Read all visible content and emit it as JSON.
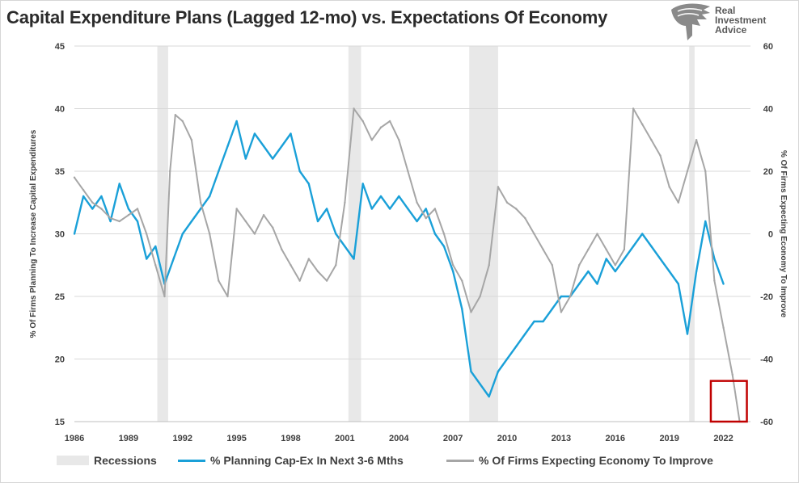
{
  "header": {
    "title": "Capital Expenditure Plans (Lagged 12-mo) vs. Expectations Of Economy"
  },
  "logo": {
    "line1": "Real",
    "line2": "Investment",
    "line3": "Advice",
    "icon": "eagle-icon"
  },
  "colors": {
    "capex": "#1aa0d8",
    "economy": "#a6a6a6",
    "recession": "#e8e8e8",
    "highlight": "#c00000"
  },
  "chart_data": {
    "type": "line",
    "title": "Capital Expenditure Plans (Lagged 12-mo) vs. Expectations Of Economy",
    "xlabel": "",
    "xlim": [
      1986,
      2023.5
    ],
    "x_ticks": [
      1986,
      1989,
      1992,
      1995,
      1998,
      2001,
      2004,
      2007,
      2010,
      2013,
      2016,
      2019,
      2022
    ],
    "ylabel_left": "% Of Firms Planning To Increase Capital Expenditures",
    "ylim_left": [
      15,
      45
    ],
    "yticks_left": [
      15,
      20,
      25,
      30,
      35,
      40,
      45
    ],
    "ylabel_right": "% Of Firms Expecting Economy To Improve",
    "ylim_right": [
      -60,
      60
    ],
    "yticks_right": [
      -60,
      -40,
      -20,
      0,
      20,
      40,
      60
    ],
    "grid": true,
    "legend_position": "bottom",
    "recessions": [
      [
        1990.6,
        1991.2
      ],
      [
        2001.2,
        2001.9
      ],
      [
        2007.9,
        2009.5
      ],
      [
        2020.1,
        2020.4
      ]
    ],
    "highlight_region": {
      "x": [
        2021.3,
        2023.3
      ],
      "y_right": [
        -60,
        -47
      ]
    },
    "series": [
      {
        "name": "Recessions",
        "type": "band"
      },
      {
        "name": "% Planning Cap-Ex In Next 3-6 Mths",
        "axis": "left",
        "x": [
          1986.0,
          1986.5,
          1987.0,
          1987.5,
          1988.0,
          1988.5,
          1989.0,
          1989.5,
          1990.0,
          1990.5,
          1991.0,
          1991.5,
          1992.0,
          1992.5,
          1993.0,
          1993.5,
          1994.0,
          1994.5,
          1995.0,
          1995.5,
          1996.0,
          1996.5,
          1997.0,
          1997.5,
          1998.0,
          1998.5,
          1999.0,
          1999.5,
          2000.0,
          2000.5,
          2001.0,
          2001.5,
          2002.0,
          2002.5,
          2003.0,
          2003.5,
          2004.0,
          2004.5,
          2005.0,
          2005.5,
          2006.0,
          2006.5,
          2007.0,
          2007.5,
          2008.0,
          2008.5,
          2009.0,
          2009.5,
          2010.0,
          2010.5,
          2011.0,
          2011.5,
          2012.0,
          2012.5,
          2013.0,
          2013.5,
          2014.0,
          2014.5,
          2015.0,
          2015.5,
          2016.0,
          2016.5,
          2017.0,
          2017.5,
          2018.0,
          2018.5,
          2019.0,
          2019.5,
          2020.0,
          2020.5,
          2021.0,
          2021.5,
          2022.0
        ],
        "values": [
          30,
          33,
          32,
          33,
          31,
          34,
          32,
          31,
          28,
          29,
          26,
          28,
          30,
          31,
          32,
          33,
          35,
          37,
          39,
          36,
          38,
          37,
          36,
          37,
          38,
          35,
          34,
          31,
          32,
          30,
          29,
          28,
          34,
          32,
          33,
          32,
          33,
          32,
          31,
          32,
          30,
          29,
          27,
          24,
          19,
          18,
          17,
          19,
          20,
          21,
          22,
          23,
          23,
          24,
          25,
          25,
          26,
          27,
          26,
          28,
          27,
          28,
          29,
          30,
          29,
          28,
          27,
          26,
          22,
          27,
          31,
          28,
          26
        ]
      },
      {
        "name": "% Of Firms Expecting Economy To Improve",
        "axis": "right",
        "x": [
          1986.0,
          1986.5,
          1987.0,
          1987.5,
          1988.0,
          1988.5,
          1989.0,
          1989.5,
          1990.0,
          1990.5,
          1991.0,
          1991.3,
          1991.6,
          1992.0,
          1992.5,
          1993.0,
          1993.5,
          1994.0,
          1994.5,
          1995.0,
          1995.5,
          1996.0,
          1996.5,
          1997.0,
          1997.5,
          1998.0,
          1998.5,
          1999.0,
          1999.5,
          2000.0,
          2000.5,
          2001.0,
          2001.5,
          2002.0,
          2002.5,
          2003.0,
          2003.5,
          2004.0,
          2004.5,
          2005.0,
          2005.5,
          2006.0,
          2006.5,
          2007.0,
          2007.5,
          2008.0,
          2008.5,
          2009.0,
          2009.5,
          2010.0,
          2010.5,
          2011.0,
          2011.5,
          2012.0,
          2012.5,
          2013.0,
          2013.5,
          2014.0,
          2014.5,
          2015.0,
          2015.5,
          2016.0,
          2016.5,
          2017.0,
          2017.5,
          2018.0,
          2018.5,
          2019.0,
          2019.5,
          2020.0,
          2020.5,
          2021.0,
          2021.5,
          2022.0,
          2022.5,
          2022.9
        ],
        "values": [
          18,
          14,
          10,
          8,
          5,
          4,
          6,
          8,
          0,
          -10,
          -20,
          20,
          38,
          36,
          30,
          10,
          0,
          -15,
          -20,
          8,
          4,
          0,
          6,
          2,
          -5,
          -10,
          -15,
          -8,
          -12,
          -15,
          -10,
          10,
          40,
          36,
          30,
          34,
          36,
          30,
          20,
          10,
          5,
          8,
          0,
          -10,
          -15,
          -25,
          -20,
          -10,
          15,
          10,
          8,
          5,
          0,
          -5,
          -10,
          -25,
          -20,
          -10,
          -5,
          0,
          -5,
          -10,
          -5,
          40,
          35,
          30,
          25,
          15,
          10,
          20,
          30,
          20,
          -15,
          -30,
          -45,
          -60
        ]
      }
    ]
  },
  "legend": {
    "recessions": "Recessions",
    "capex": "% Planning Cap-Ex In Next 3-6 Mths",
    "economy": "% Of Firms Expecting Economy To Improve"
  }
}
